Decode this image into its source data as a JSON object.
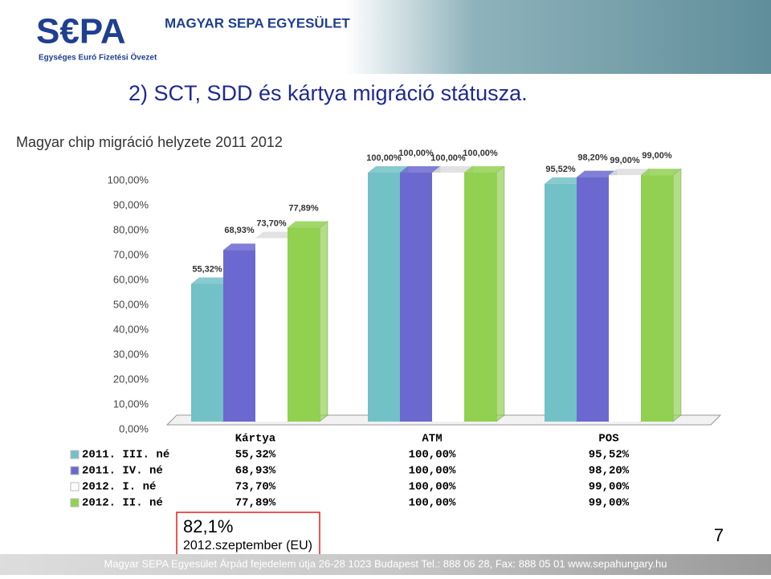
{
  "header": {
    "logo": "S€PA",
    "logo_subtitle": "Egységes Euró Fizetési Övezet",
    "organization": "MAGYAR SEPA EGYESÜLET"
  },
  "slide_title": "2) SCT, SDD és kártya migráció státusza.",
  "chart_data": {
    "type": "bar",
    "title": "Magyar chip migráció helyzete 2011 2012",
    "categories": [
      "Kártya",
      "ATM",
      "POS"
    ],
    "series": [
      {
        "name": "2011. III. né",
        "color": "#72c1c7",
        "values": [
          55.32,
          100,
          95.52
        ],
        "value_labels": [
          "55,32%",
          "100,00%",
          "95,52%"
        ]
      },
      {
        "name": "2011. IV. né",
        "color": "#6b69cf",
        "values": [
          68.93,
          100,
          98.2
        ],
        "value_labels": [
          "68,93%",
          "100,00%",
          "98,20%"
        ]
      },
      {
        "name": "2012. I. né",
        "color": "#ffffff",
        "values": [
          73.7,
          100,
          99
        ],
        "value_labels": [
          "73,70%",
          "100,00%",
          "99,00%"
        ]
      },
      {
        "name": "2012. II. né",
        "color": "#92d050",
        "values": [
          77.89,
          100,
          99
        ],
        "value_labels": [
          "77,89%",
          "100,00%",
          "99,00%"
        ]
      }
    ],
    "ylim": [
      0,
      100
    ],
    "yticks": [
      {
        "value": 0,
        "label": "0,00%"
      },
      {
        "value": 10,
        "label": "10,00%"
      },
      {
        "value": 20,
        "label": "20,00%"
      },
      {
        "value": 30,
        "label": "30,00%"
      },
      {
        "value": 40,
        "label": "40,00%"
      },
      {
        "value": 50,
        "label": "50,00%"
      },
      {
        "value": 60,
        "label": "60,00%"
      },
      {
        "value": 70,
        "label": "70,00%"
      },
      {
        "value": 80,
        "label": "80,00%"
      },
      {
        "value": 90,
        "label": "90,00%"
      },
      {
        "value": 100,
        "label": "100,00%"
      }
    ]
  },
  "note": {
    "value": "82,1%",
    "caption": "2012.szeptember (EU)"
  },
  "page_number": "7",
  "footer": "Magyar SEPA Egyesület Árpád fejedelem útja 26-28 1023 Budapest Tel.: 888 06 28, Fax: 888 05 01 www.sepahungary.hu"
}
